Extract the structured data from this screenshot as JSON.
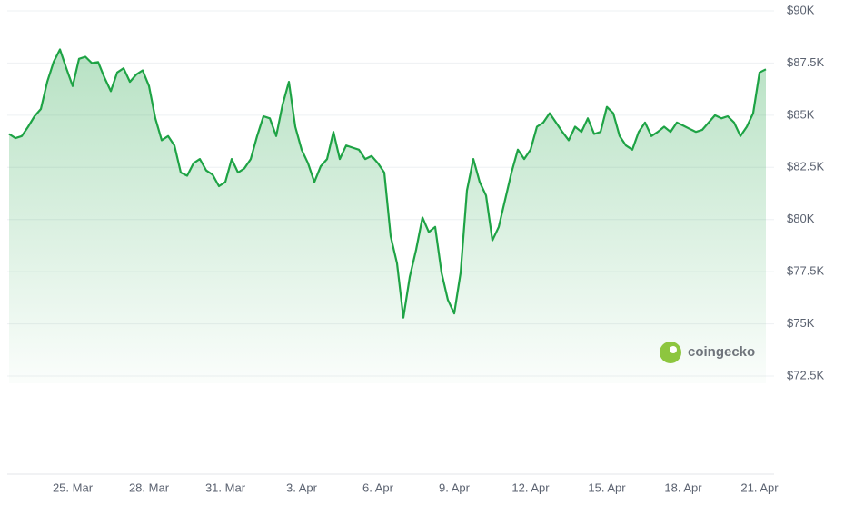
{
  "chart_data": {
    "type": "line",
    "color": "#1ea345",
    "watermark": "coingecko",
    "categories": [
      null,
      null,
      null,
      null,
      null,
      null,
      null,
      null,
      null,
      null,
      "25. Mar",
      null,
      null,
      null,
      null,
      null,
      null,
      null,
      null,
      null,
      null,
      null,
      "28. Mar",
      null,
      null,
      null,
      null,
      null,
      null,
      null,
      null,
      null,
      null,
      null,
      "31. Mar",
      null,
      null,
      null,
      null,
      null,
      null,
      null,
      null,
      null,
      null,
      null,
      "3. Apr",
      null,
      null,
      null,
      null,
      null,
      null,
      null,
      null,
      null,
      null,
      null,
      "6. Apr",
      null,
      null,
      null,
      null,
      null,
      null,
      null,
      null,
      null,
      null,
      null,
      "9. Apr",
      null,
      null,
      null,
      null,
      null,
      null,
      null,
      null,
      null,
      null,
      null,
      "12. Apr",
      null,
      null,
      null,
      null,
      null,
      null,
      null,
      null,
      null,
      null,
      null,
      "15. Apr",
      null,
      null,
      null,
      null,
      null,
      null,
      null,
      null,
      null,
      null,
      null,
      "18. Apr",
      null,
      null,
      null,
      null,
      null,
      null,
      null,
      null,
      null,
      null,
      null,
      "21. Apr",
      null
    ],
    "values": [
      84100,
      83900,
      84000,
      84450,
      84950,
      85300,
      86600,
      87550,
      88150,
      87250,
      86400,
      87700,
      87800,
      87500,
      87550,
      86800,
      86150,
      87050,
      87250,
      86600,
      86950,
      87150,
      86400,
      84850,
      83800,
      84000,
      83550,
      82250,
      82100,
      82700,
      82900,
      82350,
      82150,
      81600,
      81800,
      82900,
      82250,
      82450,
      82900,
      84000,
      84950,
      84850,
      84000,
      85500,
      86600,
      84450,
      83350,
      82700,
      81800,
      82550,
      82900,
      84200,
      82900,
      83550,
      83450,
      83350,
      82900,
      83050,
      82700,
      82250,
      79200,
      77900,
      75300,
      77250,
      78550,
      80100,
      79400,
      79650,
      77450,
      76150,
      75500,
      77450,
      81400,
      82900,
      81800,
      81150,
      79000,
      79650,
      80950,
      82250,
      83350,
      82900,
      83350,
      84450,
      84650,
      85100,
      84650,
      84200,
      83800,
      84450,
      84200,
      84850,
      84100,
      84200,
      85400,
      85100,
      84000,
      83550,
      83350,
      84200,
      84650,
      84000,
      84200,
      84450,
      84200,
      84650,
      84500,
      84350,
      84200,
      84300,
      84650,
      85000,
      84850,
      84950,
      84650,
      84000,
      84450,
      85100,
      87050,
      87200
    ],
    "ylim": [
      72500,
      90000
    ],
    "yticks": [
      {
        "value": 72500,
        "label": "$72.5K"
      },
      {
        "value": 75000,
        "label": "$75K"
      },
      {
        "value": 77500,
        "label": "$77.5K"
      },
      {
        "value": 80000,
        "label": "$80K"
      },
      {
        "value": 82500,
        "label": "$82.5K"
      },
      {
        "value": 85000,
        "label": "$85K"
      },
      {
        "value": 87500,
        "label": "$87.5K"
      },
      {
        "value": 90000,
        "label": "$90K"
      }
    ],
    "grid": true
  }
}
